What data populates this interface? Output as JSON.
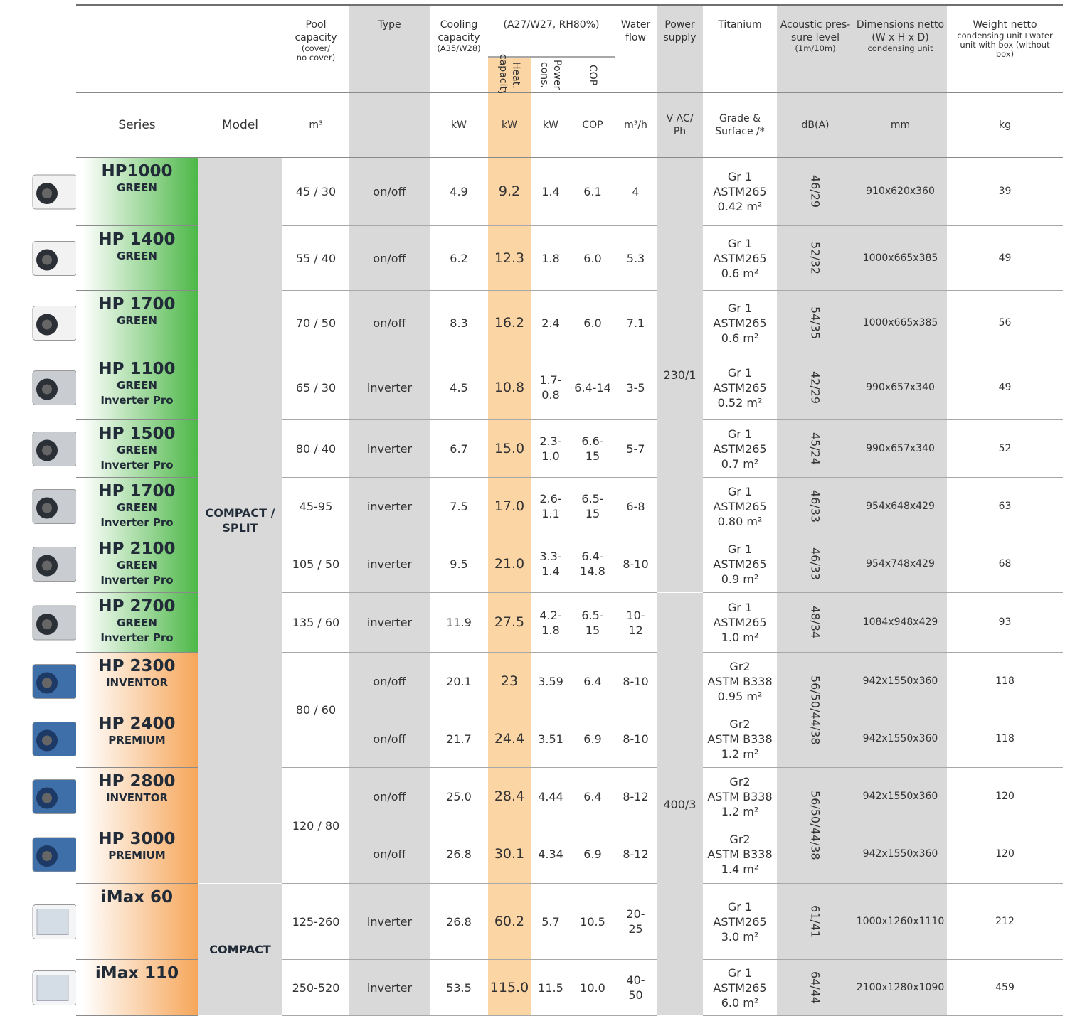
{
  "header": {
    "pool": {
      "title": [
        "Pool",
        "capacity"
      ],
      "note": [
        "(cover/",
        "no cover)"
      ]
    },
    "type": "Type",
    "cooling": {
      "title": [
        "Cooling",
        "capacity"
      ],
      "note": "(A35/W28)"
    },
    "heating": {
      "title": "(A27/W27, RH80%)",
      "heat": [
        "Heat.",
        "capacity"
      ],
      "power": [
        "Power",
        "cons."
      ],
      "cop": "COP"
    },
    "water": [
      "Water",
      "flow"
    ],
    "supply": [
      "Power",
      "supply"
    ],
    "titanium": "Titanium",
    "acoustic": {
      "title": [
        "Acoustic pres-",
        "sure level"
      ],
      "note": "(1m/10m)"
    },
    "dimensions": {
      "title": [
        "Dimensions netto",
        "(W x H x D)"
      ],
      "note": "condensing unit"
    },
    "weight": {
      "title": "Weight netto",
      "note": [
        "condensing unit+water",
        "unit with box (without",
        "box)"
      ]
    }
  },
  "units": {
    "series": "Series",
    "model": "Model",
    "pool": "m³",
    "cooling": "kW",
    "heat": "kW",
    "power": "kW",
    "cop": "COP",
    "water": "m³/h",
    "supply": [
      "V AC/",
      "Ph"
    ],
    "titanium": [
      "Grade &",
      "Surface /*"
    ],
    "acoustic": "dB(A)",
    "dimensions": "mm",
    "weight": "kg"
  },
  "model_groups": [
    [
      "COMPACT /",
      "SPLIT"
    ],
    "COMPACT"
  ],
  "power_supply": [
    "230/1",
    "400/3"
  ],
  "rows": [
    {
      "tint": "#4db848",
      "series": [
        "HP1000",
        "GREEN"
      ],
      "pool": "45 / 30",
      "type": "on/off",
      "cooling": "4.9",
      "heat": "9.2",
      "power": "1.4",
      "cop": "6.1",
      "water": "4",
      "titanium": [
        "Gr 1",
        "ASTM265",
        "0.42 m²"
      ],
      "acoustic": "46/29",
      "dimensions": "910x620x360",
      "weight": "39"
    },
    {
      "tint": "#4db848",
      "series": [
        "HP 1400",
        "GREEN"
      ],
      "pool": "55 / 40",
      "type": "on/off",
      "cooling": "6.2",
      "heat": "12.3",
      "power": "1.8",
      "cop": "6.0",
      "water": "5.3",
      "titanium": [
        "Gr 1",
        "ASTM265",
        "0.6 m²"
      ],
      "acoustic": "52/32",
      "dimensions": "1000x665x385",
      "weight": "49"
    },
    {
      "tint": "#4db848",
      "series": [
        "HP 1700",
        "GREEN"
      ],
      "pool": "70 / 50",
      "type": "on/off",
      "cooling": "8.3",
      "heat": "16.2",
      "power": "2.4",
      "cop": "6.0",
      "water": "7.1",
      "titanium": [
        "Gr 1",
        "ASTM265",
        "0.6 m²"
      ],
      "acoustic": "54/35",
      "dimensions": "1000x665x385",
      "weight": "56"
    },
    {
      "tint": "#4db848",
      "series": [
        "HP 1100",
        "GREEN",
        "Inverter Pro"
      ],
      "pool": "65 / 30",
      "type": "inverter",
      "cooling": "4.5",
      "heat": "10.8",
      "power": "1.7-0.8",
      "cop": "6.4-14",
      "water": "3-5",
      "titanium": [
        "Gr 1",
        "ASTM265",
        "0.52 m²"
      ],
      "acoustic": "42/29",
      "dimensions": "990x657x340",
      "weight": "49"
    },
    {
      "tint": "#4db848",
      "series": [
        "HP 1500",
        "GREEN",
        "Inverter Pro"
      ],
      "pool": "80 / 40",
      "type": "inverter",
      "cooling": "6.7",
      "heat": "15.0",
      "power": [
        "2.3-",
        "1.0"
      ],
      "cop": [
        "6.6-",
        "15"
      ],
      "water": "5-7",
      "titanium": [
        "Gr 1",
        "ASTM265",
        "0.7 m²"
      ],
      "acoustic": "45/24",
      "dimensions": "990x657x340",
      "weight": "52"
    },
    {
      "tint": "#4db848",
      "series": [
        "HP 1700",
        "GREEN",
        "Inverter Pro"
      ],
      "pool": "45-95",
      "type": "inverter",
      "cooling": "7.5",
      "heat": "17.0",
      "power": [
        "2.6-",
        "1.1"
      ],
      "cop": [
        "6.5-",
        "15"
      ],
      "water": "6-8",
      "titanium": [
        "Gr 1",
        "ASTM265",
        "0.80 m²"
      ],
      "acoustic": "46/33",
      "dimensions": "954x648x429",
      "weight": "63"
    },
    {
      "tint": "#4db848",
      "series": [
        "HP 2100",
        "GREEN",
        "Inverter Pro"
      ],
      "pool": "105 / 50",
      "type": "inverter",
      "cooling": "9.5",
      "heat": "21.0",
      "power": [
        "3.3-",
        "1.4"
      ],
      "cop": [
        "6.4-",
        "14.8"
      ],
      "water": "8-10",
      "titanium": [
        "Gr 1",
        "ASTM265",
        "0.9 m²"
      ],
      "acoustic": "46/33",
      "dimensions": "954x748x429",
      "weight": "68"
    },
    {
      "tint": "#4db848",
      "series": [
        "HP 2700",
        "GREEN",
        "Inverter Pro"
      ],
      "pool": "135 / 60",
      "type": "inverter",
      "cooling": "11.9",
      "heat": "27.5",
      "power": [
        "4.2-",
        "1.8"
      ],
      "cop": [
        "6.5-",
        "15"
      ],
      "water": [
        "10-",
        "12"
      ],
      "titanium": [
        "Gr 1",
        "ASTM265",
        "1.0 m²"
      ],
      "acoustic": "48/34",
      "dimensions": "1084x948x429",
      "weight": "93"
    },
    {
      "tint": "#f6a65a",
      "series": [
        "HP 2300",
        "INVENTOR"
      ],
      "pool": "80 / 60",
      "type": "on/off",
      "cooling": "20.1",
      "heat": "23",
      "power": "3.59",
      "cop": "6.4",
      "water": "8-10",
      "titanium": [
        "Gr2",
        "ASTM B338",
        "0.95 m²"
      ],
      "acoustic": "56/50/44/38",
      "dimensions": "942x1550x360",
      "weight": "118"
    },
    {
      "tint": "#f6a65a",
      "series": [
        "HP 2400",
        "PREMIUM"
      ],
      "type": "on/off",
      "cooling": "21.7",
      "heat": "24.4",
      "power": "3.51",
      "cop": "6.9",
      "water": "8-10",
      "titanium": [
        "Gr2",
        "ASTM B338",
        "1.2 m²"
      ],
      "dimensions": "942x1550x360",
      "weight": "118"
    },
    {
      "tint": "#f6a65a",
      "series": [
        "HP 2800",
        "INVENTOR"
      ],
      "pool": "120 / 80",
      "type": "on/off",
      "cooling": "25.0",
      "heat": "28.4",
      "power": "4.44",
      "cop": "6.4",
      "water": "8-12",
      "titanium": [
        "Gr2",
        "ASTM B338",
        "1.2 m²"
      ],
      "acoustic": "56/50/44/38",
      "dimensions": "942x1550x360",
      "weight": "120"
    },
    {
      "tint": "#f6a65a",
      "series": [
        "HP 3000",
        "PREMIUM"
      ],
      "type": "on/off",
      "cooling": "26.8",
      "heat": "30.1",
      "power": "4.34",
      "cop": "6.9",
      "water": "8-12",
      "titanium": [
        "Gr2",
        "ASTM B338",
        "1.4 m²"
      ],
      "dimensions": "942x1550x360",
      "weight": "120"
    },
    {
      "tint": "#f6a65a",
      "series": [
        "iMax 60"
      ],
      "pool": "125-260",
      "type": "inverter",
      "cooling": "26.8",
      "heat": "60.2",
      "power": "5.7",
      "cop": "10.5",
      "water": [
        "20-",
        "25"
      ],
      "titanium": [
        "Gr 1",
        "ASTM265",
        "3.0 m²"
      ],
      "acoustic": "61/41",
      "dimensions": "1000x1260x1110",
      "weight": "212"
    },
    {
      "tint": "#f6a65a",
      "series": [
        "iMax 110"
      ],
      "pool": "250-520",
      "type": "inverter",
      "cooling": "53.5",
      "heat": "115.0",
      "power": "11.5",
      "cop": "10.0",
      "water": [
        "40-",
        "50"
      ],
      "titanium": [
        "Gr 1",
        "ASTM265",
        "6.0 m²"
      ],
      "acoustic": "64/44",
      "dimensions": "2100x1280x1090",
      "weight": "459"
    }
  ]
}
